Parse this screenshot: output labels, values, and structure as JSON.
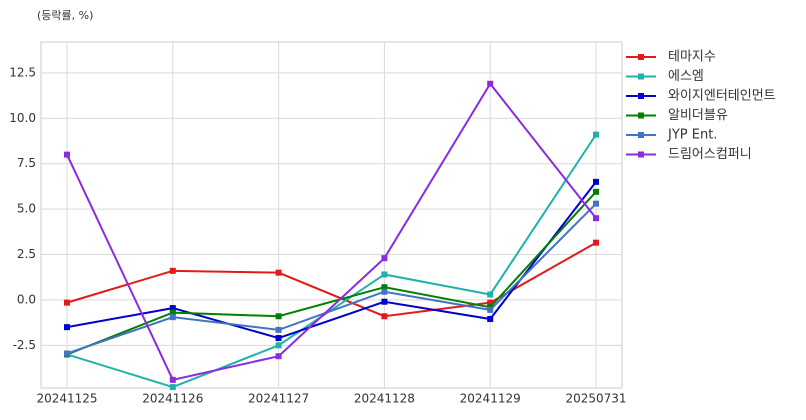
{
  "chart_data": {
    "type": "line",
    "y_label": "(등락률, %)",
    "categories": [
      "20241125",
      "20241126",
      "20241127",
      "20241128",
      "20241129",
      "20250731"
    ],
    "series": [
      {
        "name": "테마지수",
        "color": "#e31a1c",
        "values": [
          -0.15,
          1.6,
          1.5,
          -0.9,
          -0.15,
          3.15
        ]
      },
      {
        "name": "에스엠",
        "color": "#20b2aa",
        "values": [
          -3.0,
          -4.8,
          -2.5,
          1.4,
          0.3,
          9.1
        ]
      },
      {
        "name": "와이지엔터테인먼트",
        "color": "#0000cd",
        "values": [
          -1.5,
          -0.45,
          -2.1,
          -0.1,
          -1.05,
          6.5
        ]
      },
      {
        "name": "알비더블유",
        "color": "#008000",
        "values": [
          -3.0,
          -0.7,
          -0.9,
          0.7,
          -0.4,
          5.95
        ]
      },
      {
        "name": "JYP Ent.",
        "color": "#4472c4",
        "values": [
          -2.95,
          -0.95,
          -1.65,
          0.45,
          -0.55,
          5.3
        ]
      },
      {
        "name": "드림어스컴퍼니",
        "color": "#8a2be2",
        "values": [
          8.0,
          -4.4,
          -3.1,
          2.3,
          11.9,
          4.5
        ]
      }
    ],
    "ylim": [
      -4.85,
      14.2
    ],
    "yticks": [
      -2.5,
      {
        "value": 0,
        "label": "0.0"
      },
      2.5,
      {
        "value": 5,
        "label": "5.0"
      },
      7.5,
      {
        "value": 10,
        "label": "10.0"
      },
      12.5
    ],
    "grid": true,
    "legend": "outside-right"
  }
}
